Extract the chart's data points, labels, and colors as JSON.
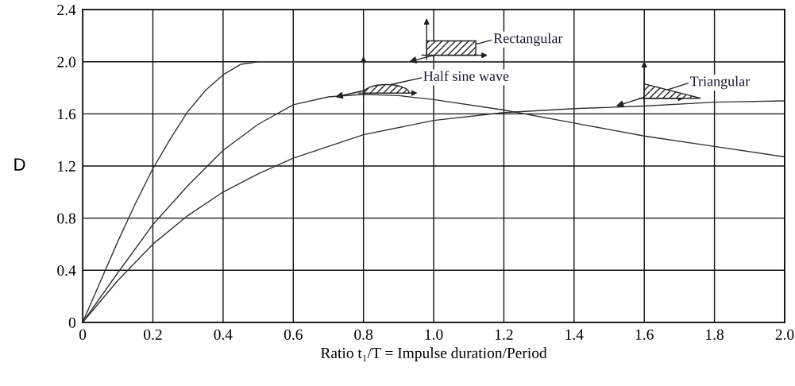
{
  "chart_data": {
    "type": "line",
    "xlabel": "Ratio t₁/T = Impulse duration/Period",
    "ylabel": "D",
    "series": [
      {
        "color": "#333333",
        "x": [
          0,
          0.05,
          0.1,
          0.15,
          0.2,
          0.25,
          0.3,
          0.35,
          0.4,
          0.45,
          0.5,
          2.0
        ],
        "values": [
          0,
          0.31,
          0.62,
          0.91,
          1.18,
          1.41,
          1.62,
          1.78,
          1.9,
          1.98,
          2.0,
          2.0
        ]
      },
      {
        "color": "#333333",
        "x": [
          0,
          0.1,
          0.2,
          0.3,
          0.4,
          0.5,
          0.6,
          0.7,
          0.8,
          0.9,
          1.0,
          1.2,
          1.4,
          1.6,
          1.8,
          2.0
        ],
        "values": [
          0,
          0.38,
          0.75,
          1.05,
          1.32,
          1.52,
          1.67,
          1.73,
          1.75,
          1.74,
          1.71,
          1.63,
          1.53,
          1.43,
          1.35,
          1.27
        ]
      },
      {
        "color": "#333333",
        "x": [
          0,
          0.1,
          0.2,
          0.3,
          0.4,
          0.5,
          0.6,
          0.8,
          1.0,
          1.2,
          1.4,
          1.6,
          1.8,
          2.0
        ],
        "values": [
          0,
          0.32,
          0.6,
          0.82,
          1.0,
          1.14,
          1.26,
          1.44,
          1.55,
          1.61,
          1.64,
          1.66,
          1.69,
          1.7
        ]
      }
    ],
    "annotations": [
      {
        "text": "Rectangular",
        "x": 0.93,
        "y": 2.0
      },
      {
        "text": "Half sine wave",
        "x": 0.72,
        "y": 1.73
      },
      {
        "text": "Triangular",
        "x": 1.52,
        "y": 1.66
      }
    ],
    "xlim": [
      0,
      2
    ],
    "ylim": [
      0,
      2.4
    ],
    "xticks": [
      0,
      0.2,
      0.4,
      0.6,
      0.8,
      {
        "value": 1,
        "label": "1.0"
      },
      1.2,
      1.4,
      1.6,
      1.8,
      {
        "value": 2,
        "label": "2.0"
      }
    ],
    "yticks": [
      0,
      0.4,
      0.8,
      1.2,
      1.6,
      {
        "value": 2,
        "label": "2.0"
      },
      2.4
    ],
    "grid": true,
    "marker": "none",
    "line_style": "solid"
  }
}
